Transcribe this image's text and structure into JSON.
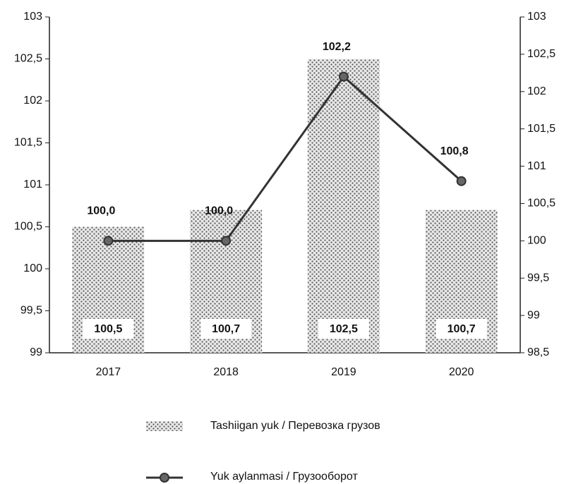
{
  "chart_data": {
    "type": "bar",
    "categories": [
      "2017",
      "2018",
      "2019",
      "2020"
    ],
    "series": [
      {
        "name": "Tashiigan yuk / Перевозка грузов",
        "color": "#555555",
        "values": [
          100.5,
          100.7,
          102.5,
          100.7
        ],
        "value_labels": [
          "100,5",
          "100,7",
          "102,5",
          "100,7"
        ]
      },
      {
        "name": "Yuk aylanmasi / Грузооборот",
        "type": "line",
        "axis": "y2",
        "color": "#333333",
        "values": [
          100.0,
          100.0,
          102.2,
          100.8
        ],
        "value_labels": [
          "100,0",
          "100,0",
          "102,2",
          "100,8"
        ]
      }
    ],
    "ylim": [
      99,
      103
    ],
    "yticks": [
      99,
      {
        "value": 99.5,
        "label": "99,5"
      },
      100,
      {
        "value": 100.5,
        "label": "100,5"
      },
      101,
      {
        "value": 101.5,
        "label": "101,5"
      },
      102,
      {
        "value": 102.5,
        "label": "102,5"
      },
      103
    ],
    "y2lim": [
      98.5,
      103
    ],
    "y2ticks": [
      {
        "value": 98.5,
        "label": "98,5"
      },
      99,
      {
        "value": 99.5,
        "label": "99,5"
      },
      100,
      {
        "value": 100.5,
        "label": "100,5"
      },
      101,
      {
        "value": 101.5,
        "label": "101,5"
      },
      102,
      {
        "value": 102.5,
        "label": "102,5"
      },
      103
    ],
    "legend": "bottom"
  }
}
